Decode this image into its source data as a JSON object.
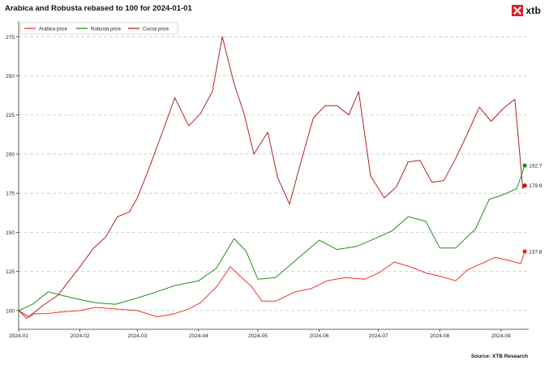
{
  "header": {
    "title": "Arabica and Robusta rebased to 100 for 2024-01-01",
    "logo_text": "xtb",
    "source": "Source: XTB Research"
  },
  "chart_data": {
    "type": "line",
    "xlabel": "",
    "ylabel": "",
    "ylim": [
      88,
      285
    ],
    "xlim": [
      "2024-01-01",
      "2024-09-15"
    ],
    "x_ticks": [
      "2024-01",
      "2024-02",
      "2024-03",
      "2024-04",
      "2024-05",
      "2024-06",
      "2024-07",
      "2024-08",
      "2024-09"
    ],
    "x_tick_dates": [
      "2024-01-01",
      "2024-02-01",
      "2024-03-01",
      "2024-04-01",
      "2024-05-01",
      "2024-06-01",
      "2024-07-01",
      "2024-08-01",
      "2024-09-01"
    ],
    "y_ticks": [
      100,
      125,
      150,
      175,
      200,
      225,
      250,
      275
    ],
    "grid": "horizontal dashed",
    "legend_position": "top-left",
    "series": [
      {
        "name": "Arabica price",
        "color": "#ee3333",
        "end_label": "137.8",
        "dates": [
          "2024-01-01",
          "2024-01-05",
          "2024-01-09",
          "2024-01-15",
          "2024-01-22",
          "2024-02-01",
          "2024-02-09",
          "2024-02-19",
          "2024-03-01",
          "2024-03-11",
          "2024-03-20",
          "2024-03-27",
          "2024-04-02",
          "2024-04-10",
          "2024-04-17",
          "2024-04-22",
          "2024-04-28",
          "2024-05-03",
          "2024-05-10",
          "2024-05-20",
          "2024-05-28",
          "2024-06-05",
          "2024-06-14",
          "2024-06-24",
          "2024-07-01",
          "2024-07-09",
          "2024-07-17",
          "2024-07-25",
          "2024-08-01",
          "2024-08-09",
          "2024-08-15",
          "2024-08-22",
          "2024-08-29",
          "2024-09-05",
          "2024-09-11",
          "2024-09-13"
        ],
        "values": [
          100,
          95,
          98,
          98,
          99,
          100,
          102,
          101,
          100,
          96,
          98,
          101,
          105,
          115,
          128,
          122,
          115,
          106,
          106,
          112,
          114,
          119,
          121,
          120,
          124,
          131,
          128,
          124,
          122,
          119,
          126,
          130,
          134,
          132,
          130,
          137.8
        ]
      },
      {
        "name": "Robusta price",
        "color": "#1f8f1f",
        "end_label": "192.7",
        "dates": [
          "2024-01-01",
          "2024-01-08",
          "2024-01-16",
          "2024-01-22",
          "2024-02-01",
          "2024-02-09",
          "2024-02-19",
          "2024-03-01",
          "2024-03-11",
          "2024-03-20",
          "2024-04-01",
          "2024-04-10",
          "2024-04-19",
          "2024-04-25",
          "2024-05-01",
          "2024-05-10",
          "2024-05-20",
          "2024-06-01",
          "2024-06-10",
          "2024-06-20",
          "2024-07-01",
          "2024-07-08",
          "2024-07-16",
          "2024-07-25",
          "2024-08-01",
          "2024-08-09",
          "2024-08-19",
          "2024-08-26",
          "2024-09-02",
          "2024-09-09",
          "2024-09-13"
        ],
        "values": [
          100,
          104,
          112,
          110,
          107,
          105,
          104,
          108,
          112,
          116,
          119,
          127,
          146,
          138,
          120,
          121,
          132,
          145,
          139,
          141,
          147,
          151,
          160,
          157,
          140,
          140,
          152,
          171,
          174,
          178,
          192.7
        ]
      },
      {
        "name": "Cocoa price",
        "color": "#b22222",
        "end_label": "179.9",
        "dates": [
          "2024-01-01",
          "2024-01-06",
          "2024-01-13",
          "2024-01-21",
          "2024-02-01",
          "2024-02-08",
          "2024-02-14",
          "2024-02-20",
          "2024-02-26",
          "2024-03-01",
          "2024-03-07",
          "2024-03-14",
          "2024-03-20",
          "2024-03-27",
          "2024-04-02",
          "2024-04-08",
          "2024-04-13",
          "2024-04-19",
          "2024-04-24",
          "2024-04-29",
          "2024-05-06",
          "2024-05-11",
          "2024-05-17",
          "2024-05-23",
          "2024-05-29",
          "2024-06-04",
          "2024-06-10",
          "2024-06-16",
          "2024-06-21",
          "2024-06-27",
          "2024-07-04",
          "2024-07-10",
          "2024-07-16",
          "2024-07-22",
          "2024-07-28",
          "2024-08-03",
          "2024-08-09",
          "2024-08-15",
          "2024-08-21",
          "2024-08-27",
          "2024-09-02",
          "2024-09-08",
          "2024-09-12",
          "2024-09-13"
        ],
        "values": [
          100,
          96,
          103,
          110,
          128,
          140,
          147,
          160,
          163,
          172,
          191,
          215,
          236,
          218,
          226,
          240,
          275,
          245,
          226,
          200,
          214,
          185,
          168,
          196,
          223,
          231,
          231,
          225,
          240,
          186,
          172,
          179,
          195,
          196,
          182,
          183,
          197,
          213,
          230,
          221,
          229,
          235,
          178,
          179.9
        ]
      }
    ]
  }
}
